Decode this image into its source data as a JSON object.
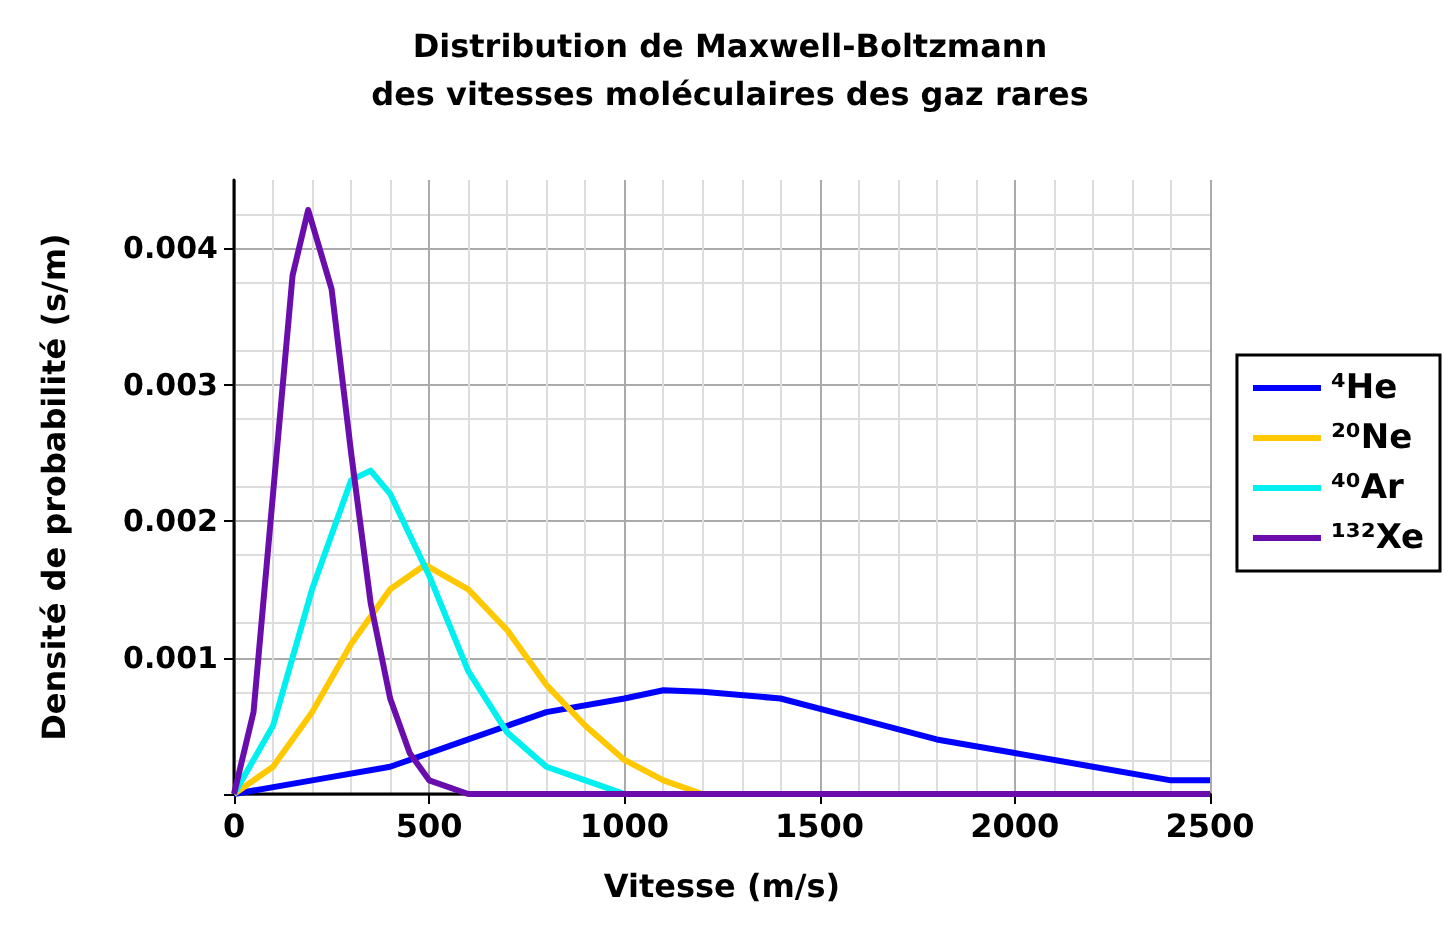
{
  "chart_data": {
    "type": "line",
    "title": "Distribution de Maxwell-Boltzmann\ndes vitesses moléculaires des gaz rares",
    "xlabel": "Vitesse (m/s)",
    "ylabel": "Densité de probabilité (s/m)",
    "xlim": [
      0,
      2500
    ],
    "xticks": [
      0,
      500,
      1000,
      1500,
      2000,
      2500
    ],
    "ylim": [
      0,
      0.0045
    ],
    "yticks": [
      {
        "value": 0,
        "label": null
      },
      0.001,
      0.002,
      0.003,
      0.004
    ],
    "grid": true,
    "legend": "right",
    "marker": "none",
    "line_style": "solid",
    "series": [
      {
        "name": "⁴He",
        "color": "#0000ff",
        "x": [
          0,
          200,
          400,
          600,
          800,
          1000,
          1100,
          1200,
          1400,
          1600,
          1800,
          2000,
          2200,
          2400,
          2500
        ],
        "values": [
          0,
          0.0001,
          0.0002,
          0.0004,
          0.0006,
          0.0007,
          0.00076,
          0.00075,
          0.0007,
          0.00055,
          0.0004,
          0.0003,
          0.0002,
          0.0001,
          0.0001
        ]
      },
      {
        "name": "²⁰Ne",
        "color": "#ffc800",
        "x": [
          0,
          100,
          200,
          300,
          400,
          490,
          600,
          700,
          800,
          900,
          1000,
          1100,
          1200,
          1300
        ],
        "values": [
          0,
          0.0002,
          0.0006,
          0.0011,
          0.0015,
          0.00168,
          0.0015,
          0.0012,
          0.0008,
          0.0005,
          0.00025,
          0.0001,
          0,
          0
        ]
      },
      {
        "name": "⁴⁰Ar",
        "color": "#00f0f0",
        "x": [
          0,
          100,
          200,
          300,
          350,
          400,
          500,
          600,
          700,
          800,
          900,
          1000
        ],
        "values": [
          0,
          0.0005,
          0.0015,
          0.0023,
          0.00237,
          0.0022,
          0.0016,
          0.0009,
          0.00045,
          0.0002,
          0.0001,
          0
        ]
      },
      {
        "name": "¹³²Xe",
        "color": "#6a0dad",
        "x": [
          0,
          50,
          100,
          150,
          190,
          250,
          300,
          350,
          400,
          450,
          500,
          600,
          700,
          2500
        ],
        "values": [
          0,
          0.0006,
          0.0022,
          0.0038,
          0.00428,
          0.0037,
          0.0025,
          0.0014,
          0.0007,
          0.0003,
          0.0001,
          0,
          0,
          0
        ]
      }
    ]
  }
}
